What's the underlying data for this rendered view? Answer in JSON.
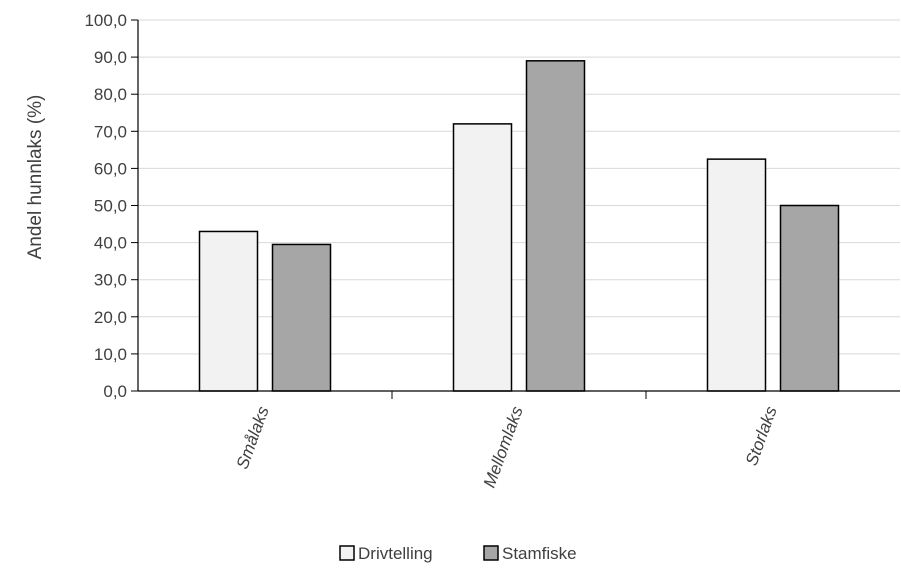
{
  "chart_data": {
    "type": "bar",
    "title": "",
    "xlabel": "",
    "ylabel": "Andel hunnlaks (%)",
    "ylim": [
      0,
      100
    ],
    "yticks": [
      0,
      10,
      20,
      30,
      40,
      50,
      60,
      70,
      80,
      90,
      100
    ],
    "ytick_labels": [
      "0,0",
      "10,0",
      "20,0",
      "30,0",
      "40,0",
      "50,0",
      "60,0",
      "70,0",
      "80,0",
      "90,0",
      "100,0"
    ],
    "grid": true,
    "legend_position": "bottom",
    "categories": [
      "Smålaks",
      "Mellomlaks",
      "Storlaks"
    ],
    "series": [
      {
        "name": "Drivtelling",
        "values": [
          43.0,
          72.0,
          62.5
        ],
        "color": "#f2f2f2"
      },
      {
        "name": "Stamfiske",
        "values": [
          39.5,
          89.0,
          50.0
        ],
        "color": "#a6a6a6"
      }
    ]
  }
}
